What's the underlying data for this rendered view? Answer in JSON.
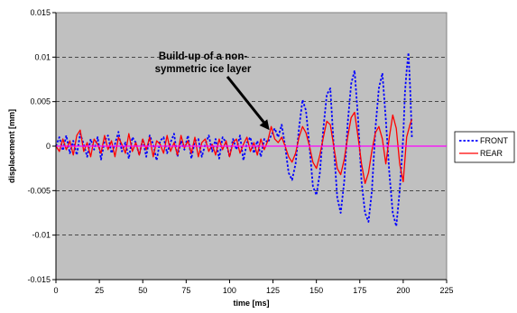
{
  "chart_data": {
    "type": "line",
    "xlabel": "time [ms]",
    "ylabel": "displacement [mm]",
    "xlim": [
      0,
      225
    ],
    "ylim": [
      -0.015,
      0.015
    ],
    "x_ticks": [
      0,
      25,
      50,
      75,
      100,
      125,
      150,
      175,
      200,
      225
    ],
    "y_ticks": [
      -0.015,
      -0.01,
      -0.005,
      0,
      0.005,
      0.01,
      0.015
    ],
    "x_tick_labels": [
      "0",
      "25",
      "50",
      "75",
      "100",
      "125",
      "150",
      "175",
      "200",
      "225"
    ],
    "y_tick_labels": [
      "-0.015",
      "-0.01",
      "-0.005",
      "0",
      "0.005",
      "0.01",
      "0.015"
    ],
    "plot_background": "#c0c0c0",
    "gridlines": "horizontal dashed",
    "reference_line": {
      "y": 0,
      "color": "#ff00ff"
    },
    "annotation": {
      "text_lines": [
        "Build-up of a non-",
        "symmetric ice layer"
      ],
      "arrow_target": {
        "x": 123,
        "y": 0.0018
      }
    },
    "legend_position": "right",
    "series": [
      {
        "name": "FRONT",
        "color": "#0000ff",
        "dash": "dotted",
        "points": [
          [
            0,
            0
          ],
          [
            2,
            0.001
          ],
          [
            4,
            -0.0005
          ],
          [
            6,
            0.0012
          ],
          [
            8,
            -0.0008
          ],
          [
            10,
            0.0006
          ],
          [
            12,
            -0.001
          ],
          [
            14,
            0.0014
          ],
          [
            16,
            0.0002
          ],
          [
            18,
            -0.0012
          ],
          [
            20,
            0.0008
          ],
          [
            22,
            -0.0004
          ],
          [
            24,
            0.001
          ],
          [
            26,
            -0.0015
          ],
          [
            28,
            0.0006
          ],
          [
            30,
            0.0012
          ],
          [
            32,
            -0.0008
          ],
          [
            34,
            0.0002
          ],
          [
            36,
            0.0016
          ],
          [
            38,
            -0.0006
          ],
          [
            40,
            0.0004
          ],
          [
            42,
            -0.0014
          ],
          [
            44,
            0.001
          ],
          [
            46,
            0.0004
          ],
          [
            48,
            -0.001
          ],
          [
            50,
            0.0008
          ],
          [
            52,
            -0.0012
          ],
          [
            54,
            0.0012
          ],
          [
            56,
            0.0002
          ],
          [
            58,
            -0.0016
          ],
          [
            60,
            0.0006
          ],
          [
            62,
            0.001
          ],
          [
            64,
            -0.0008
          ],
          [
            66,
            0.0004
          ],
          [
            68,
            0.0014
          ],
          [
            70,
            -0.0012
          ],
          [
            72,
            0.0006
          ],
          [
            74,
            -0.0004
          ],
          [
            76,
            0.0012
          ],
          [
            78,
            -0.0014
          ],
          [
            80,
            0.0006
          ],
          [
            82,
            0.0008
          ],
          [
            84,
            -0.0012
          ],
          [
            86,
            0.0002
          ],
          [
            88,
            0.0012
          ],
          [
            90,
            -0.0006
          ],
          [
            92,
            0.0008
          ],
          [
            94,
            -0.0014
          ],
          [
            96,
            0.001
          ],
          [
            98,
            0.0004
          ],
          [
            100,
            -0.0012
          ],
          [
            102,
            0.0008
          ],
          [
            104,
            -0.0004
          ],
          [
            106,
            0.0012
          ],
          [
            108,
            -0.0016
          ],
          [
            110,
            0.0004
          ],
          [
            112,
            0.001
          ],
          [
            114,
            -0.0008
          ],
          [
            116,
            0.0006
          ],
          [
            118,
            -0.0012
          ],
          [
            120,
            0.0008
          ],
          [
            122,
            0.0004
          ],
          [
            124,
            0.0012
          ],
          [
            126,
            0.002
          ],
          [
            128,
            0.001
          ],
          [
            130,
            0.0024
          ],
          [
            132,
            0.0
          ],
          [
            134,
            -0.003
          ],
          [
            136,
            -0.0038
          ],
          [
            138,
            -0.002
          ],
          [
            140,
            0.002
          ],
          [
            142,
            0.0052
          ],
          [
            144,
            0.004
          ],
          [
            146,
            0.0
          ],
          [
            148,
            -0.0045
          ],
          [
            150,
            -0.0055
          ],
          [
            152,
            -0.003
          ],
          [
            154,
            0.002
          ],
          [
            156,
            0.0058
          ],
          [
            158,
            0.0065
          ],
          [
            160,
            0.0
          ],
          [
            162,
            -0.0058
          ],
          [
            164,
            -0.0075
          ],
          [
            166,
            -0.004
          ],
          [
            168,
            0.0025
          ],
          [
            170,
            0.007
          ],
          [
            172,
            0.0085
          ],
          [
            174,
            0.003
          ],
          [
            176,
            -0.004
          ],
          [
            178,
            -0.0075
          ],
          [
            180,
            -0.0085
          ],
          [
            182,
            -0.005
          ],
          [
            184,
            0.002
          ],
          [
            186,
            0.0065
          ],
          [
            188,
            0.0082
          ],
          [
            190,
            0.003
          ],
          [
            192,
            -0.003
          ],
          [
            194,
            -0.0075
          ],
          [
            196,
            -0.009
          ],
          [
            198,
            -0.005
          ],
          [
            200,
            0.001
          ],
          [
            201,
            0.006
          ],
          [
            202,
            0.0085
          ],
          [
            203,
            0.0105
          ],
          [
            204,
            0.0065
          ],
          [
            205,
            0.001
          ]
        ]
      },
      {
        "name": "REAR",
        "color": "#ff0000",
        "dash": "solid",
        "points": [
          [
            0,
            0
          ],
          [
            2,
            -0.0006
          ],
          [
            4,
            0.0008
          ],
          [
            6,
            -0.0004
          ],
          [
            8,
            0.0006
          ],
          [
            10,
            -0.001
          ],
          [
            12,
            0.0012
          ],
          [
            14,
            0.0018
          ],
          [
            16,
            -0.0006
          ],
          [
            18,
            0.0004
          ],
          [
            20,
            -0.0012
          ],
          [
            22,
            0.0008
          ],
          [
            24,
            0.0002
          ],
          [
            26,
            -0.0008
          ],
          [
            28,
            0.0012
          ],
          [
            30,
            -0.0004
          ],
          [
            32,
            0.0006
          ],
          [
            34,
            -0.0012
          ],
          [
            36,
            0.001
          ],
          [
            38,
            0.0002
          ],
          [
            40,
            -0.0008
          ],
          [
            42,
            0.0014
          ],
          [
            44,
            -0.0006
          ],
          [
            46,
            0.0004
          ],
          [
            48,
            -0.001
          ],
          [
            50,
            0.0008
          ],
          [
            52,
            -0.0004
          ],
          [
            54,
            0.001
          ],
          [
            56,
            -0.0012
          ],
          [
            58,
            0.0006
          ],
          [
            60,
            0.0002
          ],
          [
            62,
            -0.0008
          ],
          [
            64,
            0.0012
          ],
          [
            66,
            -0.0006
          ],
          [
            68,
            0.0004
          ],
          [
            70,
            -0.001
          ],
          [
            72,
            0.0012
          ],
          [
            74,
            -0.0002
          ],
          [
            76,
            0.0006
          ],
          [
            78,
            -0.0008
          ],
          [
            80,
            0.001
          ],
          [
            82,
            -0.0012
          ],
          [
            84,
            0.0004
          ],
          [
            86,
            0.0008
          ],
          [
            88,
            -0.0006
          ],
          [
            90,
            0.0002
          ],
          [
            92,
            -0.001
          ],
          [
            94,
            0.0008
          ],
          [
            96,
            -0.0004
          ],
          [
            98,
            0.0006
          ],
          [
            100,
            -0.0012
          ],
          [
            102,
            0.0004
          ],
          [
            104,
            0.0008
          ],
          [
            106,
            -0.0008
          ],
          [
            108,
            0.0002
          ],
          [
            110,
            0.001
          ],
          [
            112,
            -0.0006
          ],
          [
            114,
            0.0004
          ],
          [
            116,
            -0.001
          ],
          [
            118,
            0.0008
          ],
          [
            120,
            -0.0004
          ],
          [
            122,
            0.0006
          ],
          [
            124,
            0.0022
          ],
          [
            126,
            0.0008
          ],
          [
            128,
            0.0004
          ],
          [
            130,
            0.001
          ],
          [
            132,
            0.0
          ],
          [
            134,
            -0.0012
          ],
          [
            136,
            -0.0018
          ],
          [
            138,
            -0.0008
          ],
          [
            140,
            0.001
          ],
          [
            142,
            0.0022
          ],
          [
            144,
            0.0015
          ],
          [
            146,
            0.0
          ],
          [
            148,
            -0.0018
          ],
          [
            150,
            -0.0025
          ],
          [
            152,
            -0.001
          ],
          [
            154,
            0.001
          ],
          [
            156,
            0.0028
          ],
          [
            158,
            0.0024
          ],
          [
            160,
            0.0
          ],
          [
            162,
            -0.0025
          ],
          [
            164,
            -0.0032
          ],
          [
            166,
            -0.0015
          ],
          [
            168,
            0.001
          ],
          [
            170,
            0.0032
          ],
          [
            172,
            0.0038
          ],
          [
            174,
            0.001
          ],
          [
            176,
            -0.002
          ],
          [
            178,
            -0.0042
          ],
          [
            180,
            -0.003
          ],
          [
            182,
            -0.0005
          ],
          [
            184,
            0.0015
          ],
          [
            186,
            0.0022
          ],
          [
            188,
            0.0008
          ],
          [
            190,
            -0.002
          ],
          [
            192,
            0.001
          ],
          [
            194,
            0.0035
          ],
          [
            196,
            0.002
          ],
          [
            198,
            -0.002
          ],
          [
            200,
            -0.004
          ],
          [
            202,
            0.001
          ],
          [
            204,
            0.0025
          ],
          [
            205,
            0.003
          ]
        ]
      }
    ]
  }
}
